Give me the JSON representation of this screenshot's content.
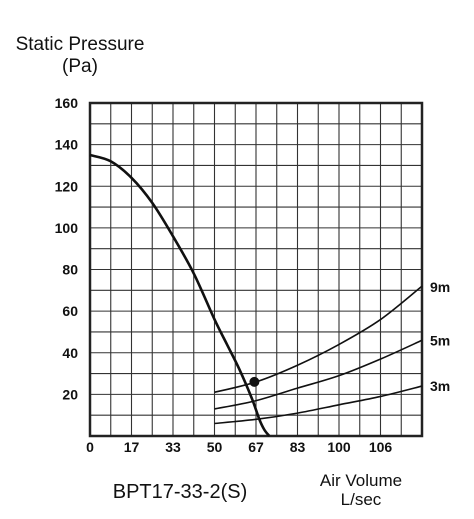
{
  "chart_data": {
    "type": "line",
    "title": "",
    "model_label": "BPT17-33-2(S)",
    "ylabel_line1": "Static Pressure",
    "ylabel_line2": "(Pa)",
    "xlabel_line1": "Air Volume",
    "xlabel_line2": "L/sec",
    "x_ticks": [
      "0",
      "17",
      "33",
      "50",
      "67",
      "83",
      "100",
      "106"
    ],
    "y_ticks": [
      "20",
      "40",
      "60",
      "80",
      "100",
      "120",
      "140",
      "160"
    ],
    "xlim": [
      0,
      133.3
    ],
    "ylim": [
      0,
      160
    ],
    "grid": true,
    "fan_curve": {
      "x": [
        0,
        8.3,
        16.7,
        25,
        33.3,
        41.7,
        50,
        55,
        60,
        65,
        68,
        70,
        72
      ],
      "y": [
        135,
        132,
        124,
        112,
        96,
        78,
        56,
        44,
        32,
        18,
        8,
        3,
        0
      ]
    },
    "series": [
      {
        "name": "9m",
        "x": [
          50,
          66.7,
          83.3,
          100,
          116.7,
          133.3
        ],
        "y": [
          21,
          26,
          34,
          44,
          56,
          72
        ]
      },
      {
        "name": "5m",
        "x": [
          50,
          66.7,
          83.3,
          100,
          116.7,
          133.3
        ],
        "y": [
          13,
          17,
          23,
          29,
          37,
          46
        ]
      },
      {
        "name": "3m",
        "x": [
          50,
          66.7,
          83.3,
          100,
          116.7,
          133.3
        ],
        "y": [
          6,
          8,
          11,
          15,
          19,
          24
        ]
      }
    ],
    "operating_point": {
      "x": 66,
      "y": 26
    }
  }
}
